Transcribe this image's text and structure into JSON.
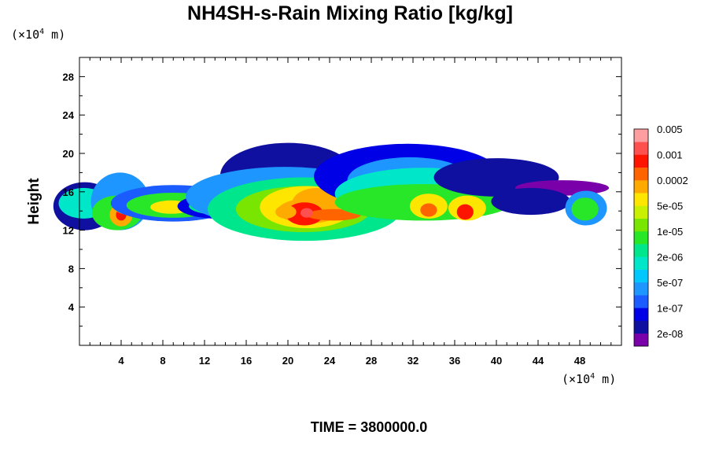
{
  "chart_data": {
    "type": "heatmap",
    "title": "NH4SH-s-Rain Mixing Ratio [kg/kg]",
    "ylabel": "Height",
    "xlabel": "",
    "x_unit": "(×10⁴ m)",
    "y_unit": "(×10⁴ m)",
    "x_unit_base": "(×10",
    "x_unit_exp": "4",
    "x_unit_tail": " m)",
    "y_unit_base": "(×10",
    "y_unit_exp": "4",
    "y_unit_tail": " m)",
    "xlim": [
      0,
      52
    ],
    "ylim": [
      0,
      30
    ],
    "x_ticks": [
      4,
      8,
      12,
      16,
      20,
      24,
      28,
      32,
      36,
      40,
      44,
      48
    ],
    "x_tick_labels": [
      "4",
      "8",
      "12",
      "16",
      "20",
      "24",
      "28",
      "32",
      "36",
      "40",
      "44",
      "48"
    ],
    "y_ticks": [
      4,
      8,
      12,
      16,
      20,
      24,
      28
    ],
    "y_tick_labels": [
      "4",
      "8",
      "12",
      "16",
      "20",
      "24",
      "28"
    ],
    "grid": false,
    "time_label": "TIME = 3800000.0",
    "colorbar": {
      "placement": "right",
      "colors": [
        "#7a00aa",
        "#1010a0",
        "#0000e6",
        "#1a5cff",
        "#1e96ff",
        "#00c8ff",
        "#00e6c8",
        "#00e68c",
        "#28e628",
        "#78e600",
        "#c8f000",
        "#ffe600",
        "#ffaa00",
        "#ff6400",
        "#ff1400",
        "#ff5050",
        "#ff9ea0"
      ],
      "labels": [
        "2e-08",
        "1e-07",
        "5e-07",
        "2e-06",
        "1e-05",
        "5e-05",
        "0.0002",
        "0.001",
        "0.005"
      ]
    },
    "cells": [
      {
        "x": 0.5,
        "y": 14.5,
        "w": 3,
        "h": 2.5,
        "level": 1
      },
      {
        "x": 0.4,
        "y": 14.8,
        "w": 2.4,
        "h": 1.6,
        "level": 6
      },
      {
        "x": 2.4,
        "y": 13.7,
        "w": 1.2,
        "h": 0.9,
        "level": 12
      },
      {
        "x": 2.5,
        "y": 13.7,
        "w": 0.6,
        "h": 0.5,
        "level": 14
      },
      {
        "x": 3.9,
        "y": 15,
        "w": 2.8,
        "h": 3,
        "level": 4
      },
      {
        "x": 3.6,
        "y": 13.8,
        "w": 2.4,
        "h": 1.8,
        "level": 8
      },
      {
        "x": 4,
        "y": 13.6,
        "w": 1.1,
        "h": 1.2,
        "level": 12
      },
      {
        "x": 4,
        "y": 13.6,
        "w": 0.5,
        "h": 0.6,
        "level": 14
      },
      {
        "x": 4.8,
        "y": 14.6,
        "w": 1.6,
        "h": 1,
        "level": 10
      },
      {
        "x": 9,
        "y": 14.8,
        "w": 6,
        "h": 1.9,
        "level": 3
      },
      {
        "x": 9,
        "y": 14.6,
        "w": 4.5,
        "h": 1.3,
        "level": 8
      },
      {
        "x": 8.8,
        "y": 14.4,
        "w": 2,
        "h": 0.7,
        "level": 11
      },
      {
        "x": 13.4,
        "y": 14.5,
        "w": 4,
        "h": 1.3,
        "level": 2
      },
      {
        "x": 13.5,
        "y": 14.5,
        "w": 3,
        "h": 0.9,
        "level": 7
      },
      {
        "x": 20,
        "y": 17.7,
        "w": 6.5,
        "h": 3.4,
        "level": 1
      },
      {
        "x": 19.7,
        "y": 15.5,
        "w": 9.5,
        "h": 3.1,
        "level": 4
      },
      {
        "x": 21.6,
        "y": 14.2,
        "w": 9.3,
        "h": 3.3,
        "level": 7
      },
      {
        "x": 21.5,
        "y": 14.2,
        "w": 6.5,
        "h": 2.4,
        "level": 9
      },
      {
        "x": 21.8,
        "y": 14.4,
        "w": 4.5,
        "h": 2.2,
        "level": 11
      },
      {
        "x": 22.8,
        "y": 14.8,
        "w": 2.4,
        "h": 1.6,
        "level": 12
      },
      {
        "x": 22,
        "y": 14,
        "w": 3,
        "h": 1.3,
        "level": 12
      },
      {
        "x": 21.6,
        "y": 13.7,
        "w": 1.8,
        "h": 1.2,
        "level": 14
      },
      {
        "x": 24.4,
        "y": 13.6,
        "w": 2.6,
        "h": 0.6,
        "level": 13
      },
      {
        "x": 21.8,
        "y": 13.8,
        "w": 0.6,
        "h": 0.5,
        "level": 15
      },
      {
        "x": 19.8,
        "y": 13.9,
        "w": 1,
        "h": 0.7,
        "level": 12
      },
      {
        "x": 31.5,
        "y": 17.6,
        "w": 9,
        "h": 3.4,
        "level": 2
      },
      {
        "x": 31.7,
        "y": 17.2,
        "w": 6,
        "h": 2.4,
        "level": 4
      },
      {
        "x": 33,
        "y": 15.8,
        "w": 8.5,
        "h": 2.7,
        "level": 6
      },
      {
        "x": 33,
        "y": 14.9,
        "w": 8.5,
        "h": 1.9,
        "level": 8
      },
      {
        "x": 33.5,
        "y": 14.5,
        "w": 1.8,
        "h": 1.3,
        "level": 11
      },
      {
        "x": 33.5,
        "y": 14.1,
        "w": 0.8,
        "h": 0.7,
        "level": 13
      },
      {
        "x": 37.2,
        "y": 14.3,
        "w": 1.8,
        "h": 1.3,
        "level": 11
      },
      {
        "x": 37,
        "y": 13.9,
        "w": 0.8,
        "h": 0.8,
        "level": 14
      },
      {
        "x": 40,
        "y": 17.5,
        "w": 6,
        "h": 2,
        "level": 1
      },
      {
        "x": 46.3,
        "y": 16.4,
        "w": 4.5,
        "h": 0.8,
        "level": 0
      },
      {
        "x": 43.3,
        "y": 15,
        "w": 3.8,
        "h": 1.4,
        "level": 1
      },
      {
        "x": 48.6,
        "y": 14.3,
        "w": 2,
        "h": 1.8,
        "level": 4
      },
      {
        "x": 48.5,
        "y": 14.2,
        "w": 1.3,
        "h": 1.2,
        "level": 8
      }
    ]
  }
}
